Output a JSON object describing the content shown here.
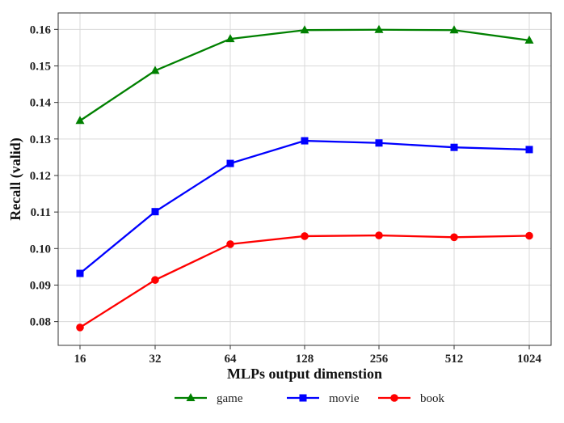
{
  "chart_data": {
    "type": "line",
    "title": "",
    "xlabel": "MLPs output dimenstion",
    "ylabel": "Recall (valid)",
    "categories": [
      "16",
      "32",
      "64",
      "128",
      "256",
      "512",
      "1024"
    ],
    "ylim": [
      0.0735,
      0.1645
    ],
    "yticks": [
      "0.08",
      "0.09",
      "0.10",
      "0.11",
      "0.12",
      "0.13",
      "0.14",
      "0.15",
      "0.16"
    ],
    "grid": true,
    "legend_position": "bottom-center",
    "series": [
      {
        "name": "game",
        "color": "#008000",
        "marker": "triangle",
        "values": [
          0.135,
          0.1487,
          0.1574,
          0.1598,
          0.1599,
          0.1598,
          0.157
        ]
      },
      {
        "name": "movie",
        "color": "#0000ff",
        "marker": "square",
        "values": [
          0.0932,
          0.1101,
          0.1233,
          0.1295,
          0.1289,
          0.1277,
          0.1271
        ]
      },
      {
        "name": "book",
        "color": "#ff0000",
        "marker": "circle",
        "values": [
          0.0784,
          0.0914,
          0.1012,
          0.1034,
          0.1036,
          0.1031,
          0.1035
        ]
      }
    ]
  }
}
